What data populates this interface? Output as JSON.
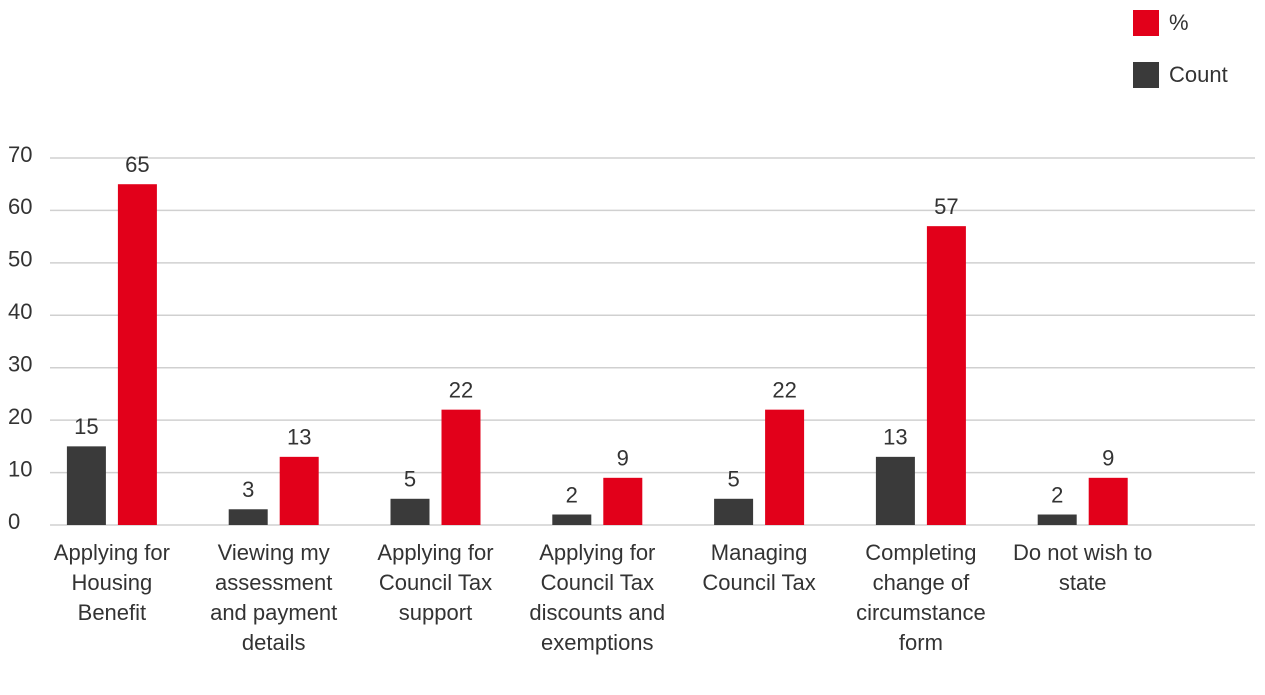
{
  "chart_data": {
    "type": "bar",
    "categories": [
      "Applying for Housing Benefit",
      "Viewing my assessment and payment details",
      "Applying for Council Tax support",
      "Applying for Council Tax discounts and exemptions",
      "Managing Council Tax",
      "Completing change of circumstance form",
      "Do not wish to state"
    ],
    "series": [
      {
        "name": "Count",
        "color": "#3a3a3a",
        "values": [
          15,
          3,
          5,
          2,
          5,
          13,
          2
        ]
      },
      {
        "name": "%",
        "color": "#e2001a",
        "values": [
          65,
          13,
          22,
          9,
          22,
          57,
          9
        ]
      }
    ],
    "ylim": [
      0,
      70
    ],
    "yticks": [
      0,
      10,
      20,
      30,
      40,
      50,
      60,
      70
    ],
    "grid": true,
    "legend": "top-right"
  }
}
